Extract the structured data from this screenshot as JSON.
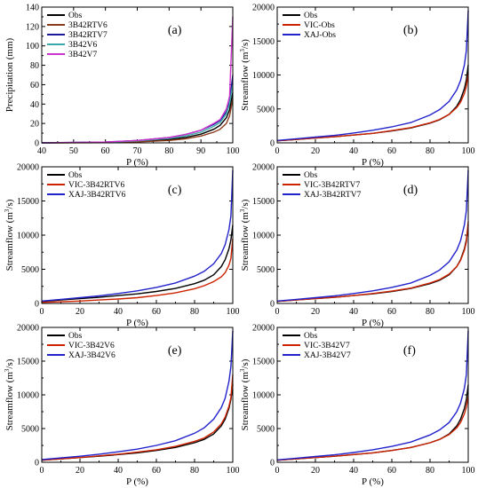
{
  "colors": {
    "Obs": "#000000",
    "3B42RTV6": "#8B3A1A",
    "3B42RTV7": "#1a1a9a",
    "3B42V6": "#3aa8a8",
    "3B42V7": "#cc33cc",
    "VIC": "#cc2200",
    "XAJ": "#2222cc"
  },
  "chart_data": [
    {
      "type": "line",
      "panel_label": "(a)",
      "xlabel": "P (%)",
      "ylabel": "Precipitation (mm)",
      "xlim": [
        40,
        100
      ],
      "ylim": [
        0,
        140
      ],
      "xticks": [
        "40",
        "50",
        "60",
        "70",
        "80",
        "90",
        "100"
      ],
      "yticks": [
        "0",
        "20",
        "40",
        "60",
        "80",
        "100",
        "120",
        "140"
      ],
      "legend_position": "top-left",
      "series": [
        {
          "name": "Obs",
          "color_key": "Obs",
          "x": [
            40,
            60,
            70,
            80,
            85,
            90,
            94,
            96,
            98,
            99,
            100
          ],
          "y": [
            0,
            0.5,
            1.5,
            3.5,
            5.5,
            9,
            14,
            18,
            26,
            34,
            52
          ]
        },
        {
          "name": "3B42RTV6",
          "color_key": "3B42RTV6",
          "x": [
            40,
            60,
            70,
            80,
            85,
            90,
            94,
            96,
            98,
            99,
            100
          ],
          "y": [
            0,
            0.2,
            1,
            2.5,
            4,
            7,
            11,
            14,
            20,
            28,
            45
          ]
        },
        {
          "name": "3B42RTV7",
          "color_key": "3B42RTV7",
          "x": [
            40,
            60,
            70,
            80,
            85,
            90,
            94,
            96,
            98,
            99,
            100
          ],
          "y": [
            0,
            0.8,
            2.5,
            5.5,
            8.5,
            13,
            19,
            23,
            32,
            42,
            70
          ]
        },
        {
          "name": "3B42V6",
          "color_key": "3B42V6",
          "x": [
            40,
            60,
            70,
            80,
            85,
            90,
            94,
            96,
            98,
            99,
            100
          ],
          "y": [
            0,
            0.6,
            2,
            4.5,
            7,
            11,
            17,
            21,
            30,
            40,
            60
          ]
        },
        {
          "name": "3B42V7",
          "color_key": "3B42V7",
          "x": [
            40,
            60,
            70,
            80,
            85,
            90,
            94,
            96,
            98,
            99,
            100
          ],
          "y": [
            0,
            0.8,
            2.5,
            5.5,
            8.5,
            13,
            20,
            24,
            35,
            48,
            130
          ]
        }
      ]
    },
    {
      "type": "line",
      "panel_label": "(b)",
      "xlabel": "P (%)",
      "ylabel": "Streamflow (m3/s)",
      "xlim": [
        0,
        100
      ],
      "ylim": [
        0,
        20000
      ],
      "xticks": [
        "0",
        "20",
        "40",
        "60",
        "80",
        "100"
      ],
      "yticks": [
        "0",
        "5000",
        "10000",
        "15000",
        "20000"
      ],
      "legend_position": "top-left",
      "series": [
        {
          "name": "Obs",
          "color_key": "Obs",
          "x": [
            0,
            10,
            20,
            30,
            40,
            50,
            60,
            70,
            80,
            85,
            90,
            94,
            96,
            98,
            99,
            100
          ],
          "y": [
            300,
            500,
            700,
            900,
            1150,
            1400,
            1750,
            2200,
            2900,
            3400,
            4200,
            5400,
            6400,
            8000,
            9300,
            11500
          ]
        },
        {
          "name": "VIC-Obs",
          "color_key": "VIC",
          "x": [
            0,
            10,
            20,
            30,
            40,
            50,
            60,
            70,
            80,
            85,
            90,
            94,
            96,
            98,
            99,
            100
          ],
          "y": [
            300,
            500,
            700,
            900,
            1150,
            1400,
            1800,
            2250,
            2950,
            3450,
            4200,
            5200,
            6000,
            7300,
            8300,
            10200
          ]
        },
        {
          "name": "XAJ-Obs",
          "color_key": "XAJ",
          "x": [
            0,
            10,
            20,
            30,
            40,
            50,
            60,
            70,
            80,
            85,
            90,
            94,
            96,
            98,
            99,
            100
          ],
          "y": [
            350,
            600,
            850,
            1100,
            1450,
            1850,
            2350,
            3000,
            4100,
            4900,
            6100,
            7800,
            9200,
            11500,
            13600,
            19500
          ]
        }
      ]
    },
    {
      "type": "line",
      "panel_label": "(c)",
      "xlabel": "P (%)",
      "ylabel": "Streamflow (m3/s)",
      "xlim": [
        0,
        100
      ],
      "ylim": [
        0,
        20000
      ],
      "xticks": [
        "0",
        "20",
        "40",
        "60",
        "80",
        "100"
      ],
      "yticks": [
        "0",
        "5000",
        "10000",
        "15000",
        "20000"
      ],
      "legend_position": "top-left",
      "series": [
        {
          "name": "Obs",
          "color_key": "Obs",
          "x": [
            0,
            10,
            20,
            30,
            40,
            50,
            60,
            70,
            80,
            85,
            90,
            94,
            96,
            98,
            99,
            100
          ],
          "y": [
            300,
            500,
            700,
            900,
            1150,
            1400,
            1750,
            2200,
            2900,
            3400,
            4200,
            5400,
            6400,
            8000,
            9300,
            11500
          ]
        },
        {
          "name": "VIC-3B42RTV6",
          "color_key": "VIC",
          "x": [
            0,
            10,
            20,
            30,
            40,
            50,
            60,
            70,
            80,
            85,
            90,
            94,
            96,
            98,
            99,
            100
          ],
          "y": [
            150,
            250,
            350,
            500,
            650,
            850,
            1150,
            1550,
            2150,
            2600,
            3200,
            3900,
            4500,
            5600,
            6600,
            9500
          ]
        },
        {
          "name": "XAJ-3B42RTV6",
          "color_key": "XAJ",
          "x": [
            0,
            10,
            20,
            30,
            40,
            50,
            60,
            70,
            80,
            85,
            90,
            94,
            96,
            98,
            99,
            100
          ],
          "y": [
            350,
            600,
            850,
            1100,
            1450,
            1850,
            2350,
            3000,
            4000,
            4700,
            5800,
            7300,
            8600,
            10800,
            12800,
            19500
          ]
        }
      ]
    },
    {
      "type": "line",
      "panel_label": "(d)",
      "xlabel": "P (%)",
      "ylabel": "Streamflow (m3/s)",
      "xlim": [
        0,
        100
      ],
      "ylim": [
        0,
        20000
      ],
      "xticks": [
        "0",
        "20",
        "40",
        "60",
        "80",
        "100"
      ],
      "yticks": [
        "0",
        "5000",
        "10000",
        "15000",
        "20000"
      ],
      "legend_position": "top-left",
      "series": [
        {
          "name": "Obs",
          "color_key": "Obs",
          "x": [
            0,
            10,
            20,
            30,
            40,
            50,
            60,
            70,
            80,
            85,
            90,
            94,
            96,
            98,
            99,
            100
          ],
          "y": [
            300,
            500,
            700,
            900,
            1150,
            1400,
            1750,
            2200,
            2900,
            3400,
            4200,
            5400,
            6400,
            8000,
            9300,
            11500
          ]
        },
        {
          "name": "VIC-3B42RTV7",
          "color_key": "VIC",
          "x": [
            0,
            10,
            20,
            30,
            40,
            50,
            60,
            70,
            80,
            85,
            90,
            94,
            96,
            98,
            99,
            100
          ],
          "y": [
            300,
            500,
            700,
            900,
            1150,
            1450,
            1800,
            2250,
            3000,
            3500,
            4300,
            5400,
            6300,
            7800,
            9000,
            12000
          ]
        },
        {
          "name": "XAJ-3B42RTV7",
          "color_key": "XAJ",
          "x": [
            0,
            10,
            20,
            30,
            40,
            50,
            60,
            70,
            80,
            85,
            90,
            94,
            96,
            98,
            99,
            100
          ],
          "y": [
            350,
            600,
            850,
            1100,
            1450,
            1850,
            2350,
            3000,
            4100,
            4900,
            6100,
            7800,
            9200,
            11500,
            13600,
            19500
          ]
        }
      ]
    },
    {
      "type": "line",
      "panel_label": "(e)",
      "xlabel": "P (%)",
      "ylabel": "Streamflow (m3/s)",
      "xlim": [
        0,
        100
      ],
      "ylim": [
        0,
        20000
      ],
      "xticks": [
        "0",
        "20",
        "40",
        "60",
        "80",
        "100"
      ],
      "yticks": [
        "0",
        "5000",
        "10000",
        "15000",
        "20000"
      ],
      "legend_position": "top-left",
      "series": [
        {
          "name": "Obs",
          "color_key": "Obs",
          "x": [
            0,
            10,
            20,
            30,
            40,
            50,
            60,
            70,
            80,
            85,
            90,
            94,
            96,
            98,
            99,
            100
          ],
          "y": [
            300,
            500,
            700,
            900,
            1150,
            1400,
            1750,
            2200,
            2900,
            3400,
            4200,
            5400,
            6400,
            8000,
            9300,
            11500
          ]
        },
        {
          "name": "VIC-3B42V6",
          "color_key": "VIC",
          "x": [
            0,
            10,
            20,
            30,
            40,
            50,
            60,
            70,
            80,
            85,
            90,
            94,
            96,
            98,
            99,
            100
          ],
          "y": [
            300,
            500,
            700,
            950,
            1200,
            1500,
            1850,
            2350,
            3100,
            3600,
            4500,
            5700,
            6700,
            8300,
            9600,
            13000
          ]
        },
        {
          "name": "XAJ-3B42V6",
          "color_key": "XAJ",
          "x": [
            0,
            10,
            20,
            30,
            40,
            50,
            60,
            70,
            80,
            85,
            90,
            94,
            96,
            98,
            99,
            100
          ],
          "y": [
            400,
            650,
            900,
            1200,
            1550,
            1950,
            2500,
            3200,
            4300,
            5100,
            6400,
            8100,
            9500,
            12000,
            14200,
            19500
          ]
        }
      ]
    },
    {
      "type": "line",
      "panel_label": "(f)",
      "xlabel": "P (%)",
      "ylabel": "Streamflow (m3/s)",
      "xlim": [
        0,
        100
      ],
      "ylim": [
        0,
        20000
      ],
      "xticks": [
        "0",
        "20",
        "40",
        "60",
        "80",
        "100"
      ],
      "yticks": [
        "0",
        "5000",
        "10000",
        "15000",
        "20000"
      ],
      "legend_position": "top-left",
      "series": [
        {
          "name": "Obs",
          "color_key": "Obs",
          "x": [
            0,
            10,
            20,
            30,
            40,
            50,
            60,
            70,
            80,
            85,
            90,
            94,
            96,
            98,
            99,
            100
          ],
          "y": [
            300,
            500,
            700,
            900,
            1150,
            1400,
            1750,
            2200,
            2900,
            3400,
            4200,
            5400,
            6400,
            8000,
            9300,
            11500
          ]
        },
        {
          "name": "VIC-3B42V7",
          "color_key": "VIC",
          "x": [
            0,
            10,
            20,
            30,
            40,
            50,
            60,
            70,
            80,
            85,
            90,
            94,
            96,
            98,
            99,
            100
          ],
          "y": [
            300,
            500,
            700,
            900,
            1150,
            1400,
            1750,
            2200,
            2900,
            3400,
            4100,
            5100,
            5900,
            7200,
            8200,
            9800
          ]
        },
        {
          "name": "XAJ-3B42V7",
          "color_key": "XAJ",
          "x": [
            0,
            10,
            20,
            30,
            40,
            50,
            60,
            70,
            80,
            85,
            90,
            94,
            96,
            98,
            99,
            100
          ],
          "y": [
            350,
            600,
            850,
            1100,
            1450,
            1850,
            2350,
            3000,
            4050,
            4800,
            5900,
            7500,
            8800,
            11000,
            13000,
            19500
          ]
        }
      ]
    }
  ]
}
